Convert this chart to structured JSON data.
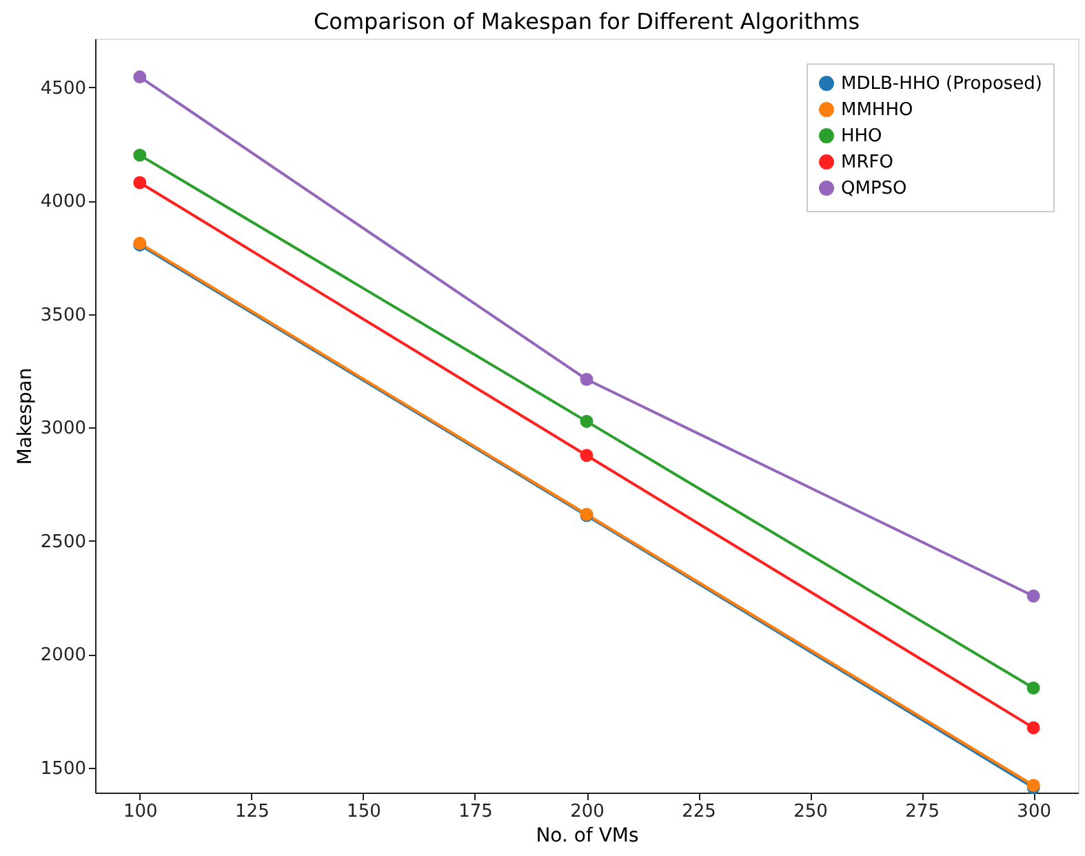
{
  "chart_data": {
    "type": "line",
    "title": "Comparison of Makespan for Different Algorithms",
    "xlabel": "No. of VMs",
    "ylabel": "Makespan",
    "x": [
      100,
      200,
      300
    ],
    "series": [
      {
        "name": "MDLB-HHO (Proposed)",
        "color": "#1f77b4",
        "values": [
          3805,
          2612,
          1412
        ]
      },
      {
        "name": "MMHHO",
        "color": "#ff7f0e",
        "values": [
          3812,
          2617,
          1422
        ]
      },
      {
        "name": "HHO",
        "color": "#2ca02c",
        "values": [
          4201,
          3027,
          1851
        ]
      },
      {
        "name": "MRFO",
        "color": "#ff2020",
        "values": [
          4080,
          2877,
          1676
        ]
      },
      {
        "name": "QMPSO",
        "color": "#9467bd",
        "values": [
          4546,
          3212,
          2257
        ]
      }
    ],
    "xlim": [
      90,
      310
    ],
    "xticks": [
      100,
      125,
      150,
      175,
      200,
      225,
      250,
      275,
      300
    ],
    "ylim": [
      1390,
      4715
    ],
    "yticks": [
      1500,
      2000,
      2500,
      3000,
      3500,
      4000,
      4500
    ],
    "grid": false,
    "legend": "top right",
    "marker": "circle",
    "line_style": "solid"
  }
}
